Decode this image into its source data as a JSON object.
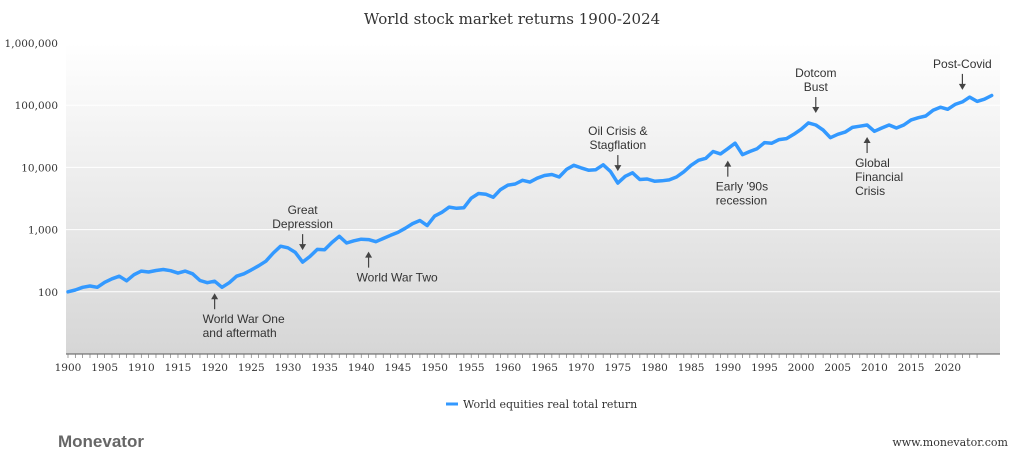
{
  "chart_data": {
    "type": "line",
    "title": "World stock market returns 1900-2024",
    "xlabel": "",
    "ylabel": "",
    "yscale": "log",
    "ylim": [
      10,
      1000000
    ],
    "xlim": [
      1900,
      2024
    ],
    "ytick_values": [
      100,
      1000,
      10000,
      100000,
      1000000
    ],
    "ytick_labels": [
      "100",
      "1,000",
      "10,000",
      "100,000",
      "1,000,000"
    ],
    "xtick_values": [
      1900,
      1905,
      1910,
      1915,
      1920,
      1925,
      1930,
      1935,
      1940,
      1945,
      1950,
      1955,
      1960,
      1965,
      1970,
      1975,
      1980,
      1985,
      1990,
      1995,
      2000,
      2005,
      2010,
      2015,
      2020
    ],
    "series": [
      {
        "name": "World equities real total return",
        "color": "#3399FF",
        "points": [
          [
            1900,
            100
          ],
          [
            1901,
            107
          ],
          [
            1902,
            118
          ],
          [
            1903,
            124
          ],
          [
            1904,
            118
          ],
          [
            1905,
            142
          ],
          [
            1906,
            162
          ],
          [
            1907,
            178
          ],
          [
            1908,
            150
          ],
          [
            1909,
            188
          ],
          [
            1910,
            215
          ],
          [
            1911,
            208
          ],
          [
            1912,
            220
          ],
          [
            1913,
            228
          ],
          [
            1914,
            218
          ],
          [
            1915,
            200
          ],
          [
            1916,
            215
          ],
          [
            1917,
            195
          ],
          [
            1918,
            152
          ],
          [
            1919,
            140
          ],
          [
            1920,
            148
          ],
          [
            1921,
            118
          ],
          [
            1922,
            140
          ],
          [
            1923,
            178
          ],
          [
            1924,
            195
          ],
          [
            1925,
            225
          ],
          [
            1926,
            262
          ],
          [
            1927,
            310
          ],
          [
            1928,
            420
          ],
          [
            1929,
            540
          ],
          [
            1930,
            510
          ],
          [
            1931,
            430
          ],
          [
            1932,
            300
          ],
          [
            1933,
            370
          ],
          [
            1934,
            480
          ],
          [
            1935,
            475
          ],
          [
            1936,
            620
          ],
          [
            1937,
            780
          ],
          [
            1938,
            610
          ],
          [
            1939,
            660
          ],
          [
            1940,
            700
          ],
          [
            1941,
            690
          ],
          [
            1942,
            640
          ],
          [
            1943,
            720
          ],
          [
            1944,
            810
          ],
          [
            1945,
            900
          ],
          [
            1946,
            1050
          ],
          [
            1947,
            1250
          ],
          [
            1948,
            1400
          ],
          [
            1949,
            1160
          ],
          [
            1950,
            1650
          ],
          [
            1951,
            1900
          ],
          [
            1952,
            2300
          ],
          [
            1953,
            2200
          ],
          [
            1954,
            2250
          ],
          [
            1955,
            3200
          ],
          [
            1956,
            3800
          ],
          [
            1957,
            3700
          ],
          [
            1958,
            3300
          ],
          [
            1959,
            4400
          ],
          [
            1960,
            5200
          ],
          [
            1961,
            5400
          ],
          [
            1962,
            6200
          ],
          [
            1963,
            5800
          ],
          [
            1964,
            6700
          ],
          [
            1965,
            7400
          ],
          [
            1966,
            7700
          ],
          [
            1967,
            7000
          ],
          [
            1968,
            9300
          ],
          [
            1969,
            10800
          ],
          [
            1970,
            9800
          ],
          [
            1971,
            9000
          ],
          [
            1972,
            9200
          ],
          [
            1973,
            11000
          ],
          [
            1974,
            8600
          ],
          [
            1975,
            5600
          ],
          [
            1976,
            7200
          ],
          [
            1977,
            8200
          ],
          [
            1978,
            6400
          ],
          [
            1979,
            6500
          ],
          [
            1980,
            6000
          ],
          [
            1981,
            6100
          ],
          [
            1982,
            6300
          ],
          [
            1983,
            7000
          ],
          [
            1984,
            8500
          ],
          [
            1985,
            10800
          ],
          [
            1986,
            13000
          ],
          [
            1987,
            14000
          ],
          [
            1988,
            18000
          ],
          [
            1989,
            16500
          ],
          [
            1990,
            20000
          ],
          [
            1991,
            24500
          ],
          [
            1992,
            16000
          ],
          [
            1993,
            18000
          ],
          [
            1994,
            20000
          ],
          [
            1995,
            25000
          ],
          [
            1996,
            24500
          ],
          [
            1997,
            28000
          ],
          [
            1998,
            29000
          ],
          [
            1999,
            34000
          ],
          [
            2000,
            41000
          ],
          [
            2001,
            52000
          ],
          [
            2002,
            48000
          ],
          [
            2003,
            40000
          ],
          [
            2004,
            30000
          ],
          [
            2005,
            34000
          ],
          [
            2006,
            37000
          ],
          [
            2007,
            44000
          ],
          [
            2008,
            46000
          ],
          [
            2009,
            48000
          ],
          [
            2010,
            38000
          ],
          [
            2011,
            43000
          ],
          [
            2012,
            48000
          ],
          [
            2013,
            43000
          ],
          [
            2014,
            48000
          ],
          [
            2015,
            58000
          ],
          [
            2016,
            63000
          ],
          [
            2017,
            67000
          ],
          [
            2018,
            83000
          ],
          [
            2019,
            93000
          ],
          [
            2020,
            86000
          ],
          [
            2021,
            103000
          ],
          [
            2022,
            113000
          ],
          [
            2023,
            135000
          ],
          [
            2024,
            115000
          ],
          [
            2025,
            125000
          ],
          [
            2026,
            143000
          ]
        ]
      }
    ],
    "annotations": [
      {
        "id": "ww1",
        "lines": [
          "World War One",
          "and aftermath"
        ],
        "year": 1920,
        "direction": "up"
      },
      {
        "id": "great-depression",
        "lines": [
          "Great",
          "Depression"
        ],
        "year": 1932,
        "direction": "down"
      },
      {
        "id": "ww2",
        "lines": [
          "World War Two"
        ],
        "year": 1941,
        "direction": "up"
      },
      {
        "id": "oil-crisis",
        "lines": [
          "Oil Crisis &",
          "Stagflation"
        ],
        "year": 1975,
        "direction": "down"
      },
      {
        "id": "early-90s",
        "lines": [
          "Early '90s",
          "recession"
        ],
        "year": 1990,
        "direction": "up"
      },
      {
        "id": "dotcom",
        "lines": [
          "Dotcom",
          "Bust"
        ],
        "year": 2002,
        "direction": "down"
      },
      {
        "id": "gfc",
        "lines": [
          "Global",
          "Financial",
          "Crisis"
        ],
        "year": 2009,
        "direction": "up"
      },
      {
        "id": "post-covid",
        "lines": [
          "Post-Covid"
        ],
        "year": 2022,
        "direction": "down"
      }
    ],
    "legend_position": "bottom-center",
    "grid": true
  },
  "branding": {
    "logo": "Monevator",
    "url": "www.monevator.com"
  }
}
